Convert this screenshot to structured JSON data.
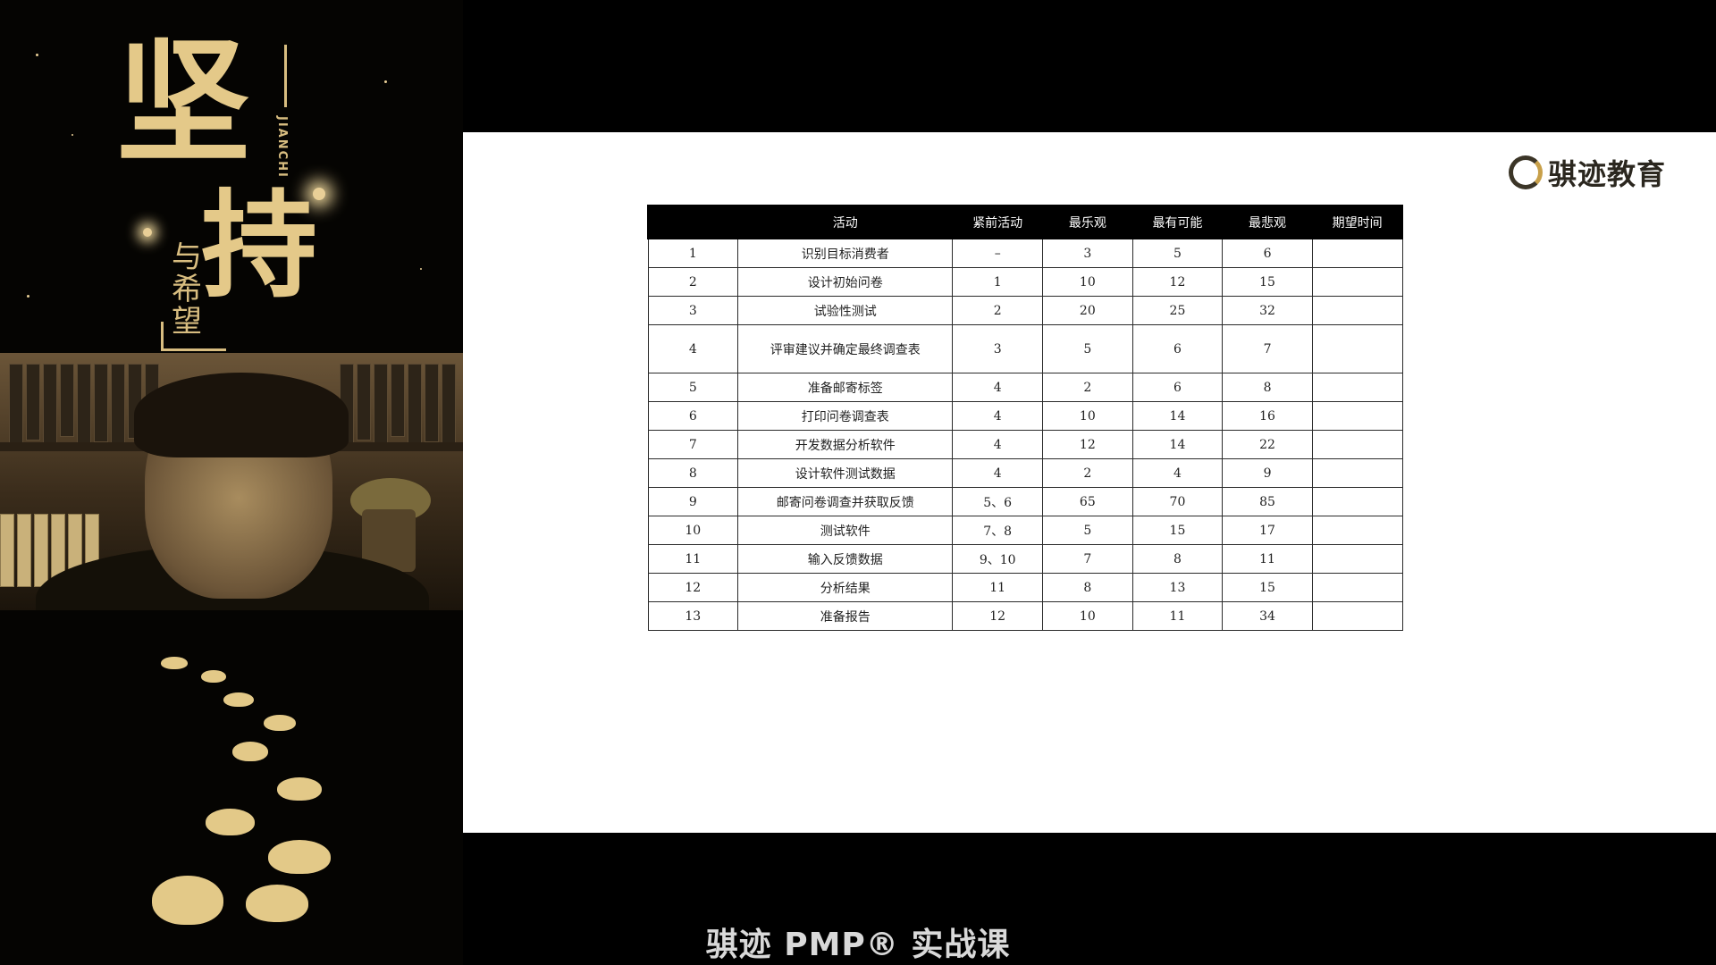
{
  "poster": {
    "title_char_1": "坚",
    "title_char_2": "持",
    "subtitle": "与希望",
    "pinyin": "JIANCHI"
  },
  "logo": {
    "text": "骐迹教育"
  },
  "table": {
    "headers": [
      "",
      "活动",
      "紧前活动",
      "最乐观",
      "最有可能",
      "最悲观",
      "期望时间"
    ],
    "rows": [
      {
        "no": "1",
        "activity": "识别目标消费者",
        "pred": "–",
        "optimistic": "3",
        "likely": "5",
        "pessimistic": "6",
        "expected": ""
      },
      {
        "no": "2",
        "activity": "设计初始问卷",
        "pred": "1",
        "optimistic": "10",
        "likely": "12",
        "pessimistic": "15",
        "expected": ""
      },
      {
        "no": "3",
        "activity": "试验性测试",
        "pred": "2",
        "optimistic": "20",
        "likely": "25",
        "pessimistic": "32",
        "expected": ""
      },
      {
        "no": "4",
        "activity": "评审建议并确定最终调查表",
        "pred": "3",
        "optimistic": "5",
        "likely": "6",
        "pessimistic": "7",
        "expected": ""
      },
      {
        "no": "5",
        "activity": "准备邮寄标签",
        "pred": "4",
        "optimistic": "2",
        "likely": "6",
        "pessimistic": "8",
        "expected": ""
      },
      {
        "no": "6",
        "activity": "打印问卷调查表",
        "pred": "4",
        "optimistic": "10",
        "likely": "14",
        "pessimistic": "16",
        "expected": ""
      },
      {
        "no": "7",
        "activity": "开发数据分析软件",
        "pred": "4",
        "optimistic": "12",
        "likely": "14",
        "pessimistic": "22",
        "expected": ""
      },
      {
        "no": "8",
        "activity": "设计软件测试数据",
        "pred": "4",
        "optimistic": "2",
        "likely": "4",
        "pessimistic": "9",
        "expected": ""
      },
      {
        "no": "9",
        "activity": "邮寄问卷调查并获取反馈",
        "pred": "5、6",
        "optimistic": "65",
        "likely": "70",
        "pessimistic": "85",
        "expected": ""
      },
      {
        "no": "10",
        "activity": "测试软件",
        "pred": "7、8",
        "optimistic": "5",
        "likely": "15",
        "pessimistic": "17",
        "expected": ""
      },
      {
        "no": "11",
        "activity": "输入反馈数据",
        "pred": "9、10",
        "optimistic": "7",
        "likely": "8",
        "pessimistic": "11",
        "expected": ""
      },
      {
        "no": "12",
        "activity": "分析结果",
        "pred": "11",
        "optimistic": "8",
        "likely": "13",
        "pessimistic": "15",
        "expected": ""
      },
      {
        "no": "13",
        "activity": "准备报告",
        "pred": "12",
        "optimistic": "10",
        "likely": "11",
        "pessimistic": "34",
        "expected": ""
      }
    ]
  },
  "caption": "骐迹 PMP® 实战课"
}
